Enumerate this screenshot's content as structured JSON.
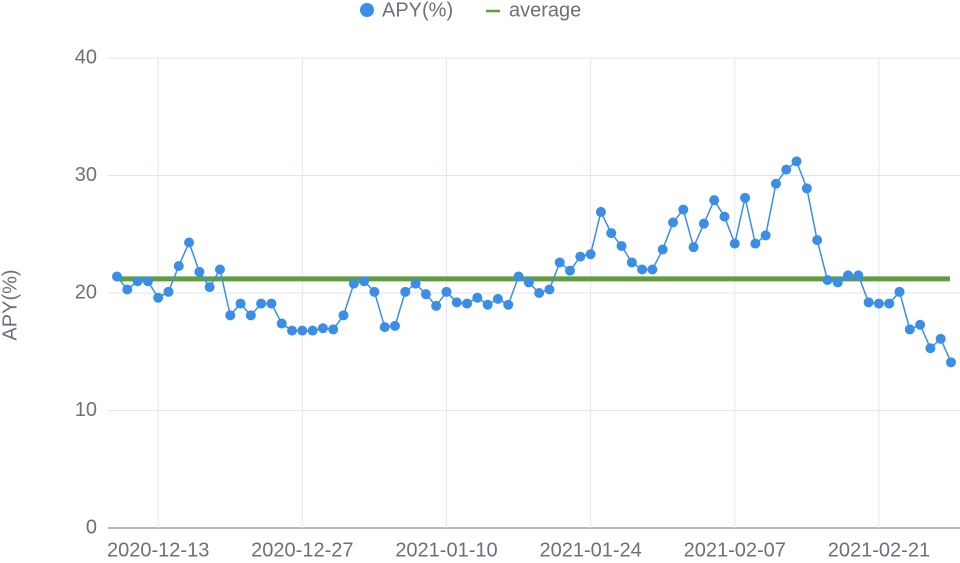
{
  "chart_data": {
    "type": "line",
    "y_label": "APY(%)",
    "x": [
      "2020-12-09",
      "2020-12-10",
      "2020-12-11",
      "2020-12-12",
      "2020-12-13",
      "2020-12-14",
      "2020-12-15",
      "2020-12-16",
      "2020-12-17",
      "2020-12-18",
      "2020-12-19",
      "2020-12-20",
      "2020-12-21",
      "2020-12-22",
      "2020-12-23",
      "2020-12-24",
      "2020-12-25",
      "2020-12-26",
      "2020-12-27",
      "2020-12-28",
      "2020-12-29",
      "2020-12-30",
      "2020-12-31",
      "2021-01-01",
      "2021-01-02",
      "2021-01-03",
      "2021-01-04",
      "2021-01-05",
      "2021-01-06",
      "2021-01-07",
      "2021-01-08",
      "2021-01-09",
      "2021-01-10",
      "2021-01-11",
      "2021-01-12",
      "2021-01-13",
      "2021-01-14",
      "2021-01-15",
      "2021-01-16",
      "2021-01-17",
      "2021-01-18",
      "2021-01-19",
      "2021-01-20",
      "2021-01-21",
      "2021-01-22",
      "2021-01-23",
      "2021-01-24",
      "2021-01-25",
      "2021-01-26",
      "2021-01-27",
      "2021-01-28",
      "2021-01-29",
      "2021-01-30",
      "2021-01-31",
      "2021-02-01",
      "2021-02-02",
      "2021-02-03",
      "2021-02-04",
      "2021-02-05",
      "2021-02-06",
      "2021-02-07",
      "2021-02-08",
      "2021-02-09",
      "2021-02-10",
      "2021-02-11",
      "2021-02-12",
      "2021-02-13",
      "2021-02-14",
      "2021-02-15",
      "2021-02-16",
      "2021-02-17",
      "2021-02-18",
      "2021-02-19",
      "2021-02-20",
      "2021-02-21",
      "2021-02-22",
      "2021-02-23",
      "2021-02-24",
      "2021-02-25",
      "2021-02-26",
      "2021-02-27",
      "2021-02-28"
    ],
    "series": [
      {
        "name": "APY(%)",
        "color": "#3a8ee6",
        "values": [
          21.4,
          20.3,
          21.0,
          21.0,
          19.6,
          20.1,
          22.3,
          24.3,
          21.8,
          20.5,
          22.0,
          18.1,
          19.1,
          18.1,
          19.1,
          19.1,
          17.4,
          16.8,
          16.8,
          16.8,
          17.0,
          16.9,
          18.1,
          20.8,
          21.0,
          20.1,
          17.1,
          17.2,
          20.1,
          20.8,
          19.9,
          18.9,
          20.1,
          19.2,
          19.1,
          19.6,
          19.0,
          19.5,
          19.0,
          21.4,
          20.9,
          20.0,
          20.3,
          22.6,
          21.9,
          23.1,
          23.3,
          26.9,
          25.1,
          24.0,
          22.6,
          22.0,
          22.0,
          23.7,
          26.0,
          27.1,
          23.9,
          25.9,
          27.9,
          26.5,
          24.2,
          28.1,
          24.2,
          24.9,
          29.3,
          30.5,
          31.2,
          28.9,
          24.5,
          21.1,
          20.9,
          21.5,
          21.5,
          19.2,
          19.1,
          19.1,
          20.1,
          16.9,
          17.3,
          15.3,
          16.1,
          14.1
        ]
      }
    ],
    "average": {
      "name": "average",
      "color": "#5e9e3c",
      "value": 21.2
    },
    "xticks": [
      "2020-12-13",
      "2020-12-27",
      "2021-01-10",
      "2021-01-24",
      "2021-02-07",
      "2021-02-21"
    ],
    "ylim": [
      0,
      40
    ],
    "yticks": [
      0,
      10,
      20,
      30,
      40
    ],
    "grid": true
  }
}
